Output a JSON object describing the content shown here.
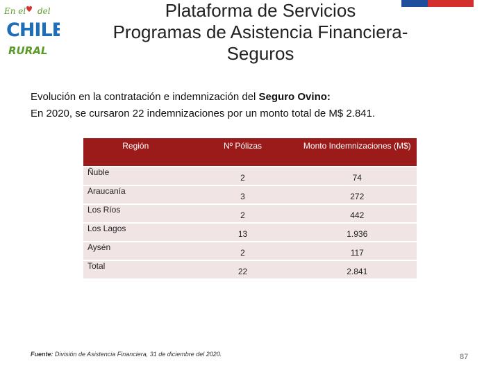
{
  "logo": {
    "top_text": "En el del",
    "main_text": "CHILE",
    "bottom_text": "RURAL"
  },
  "colors": {
    "table_header": "#9b1b1b",
    "table_row": "#f0e4e4",
    "flag_blue": "#1f4e9c",
    "flag_red": "#d32f2f",
    "logo_blue": "#1e6fb8",
    "logo_green": "#5a9a2a",
    "logo_red": "#d2352d"
  },
  "title": {
    "line1": "Plataforma de Servicios",
    "line2": "Programas de Asistencia Financiera-",
    "line3": "Seguros"
  },
  "intro": {
    "line1_prefix": "Evolución en la contratación e indemnización del ",
    "line1_bold": "Seguro Ovino:",
    "line2": "En 2020, se cursaron 22 indemnizaciones por un monto total de M$ 2.841."
  },
  "table": {
    "headers": [
      "Región",
      "Nº Pólizas",
      "Monto Indemnizaciones (M$)"
    ],
    "rows": [
      [
        "Ñuble",
        "2",
        "74"
      ],
      [
        "Araucanía",
        "3",
        "272"
      ],
      [
        "Los Ríos",
        "2",
        "442"
      ],
      [
        "Los Lagos",
        "13",
        "1.936"
      ],
      [
        "Aysén",
        "2",
        "117"
      ],
      [
        "Total",
        "22",
        "2.841"
      ]
    ]
  },
  "source": {
    "label": "Fuente:",
    "text": " División de Asistencia Financiera, 31 de diciembre del 2020."
  },
  "page_number": "87"
}
